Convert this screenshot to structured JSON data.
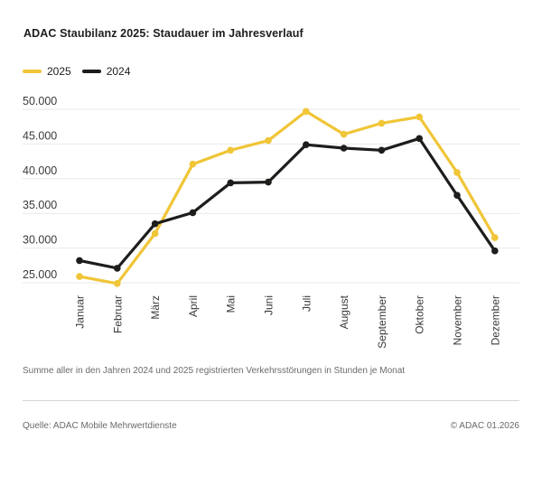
{
  "page": {
    "title": "ADAC Staubilanz 2025: Staudauer im Jahresverlauf",
    "footnote": "Summe aller in den Jahren 2024 und 2025 registrierten Verkehrsstörungen in Stunden je Monat",
    "source": "Quelle: ADAC Mobile Mehrwertdienste",
    "copyright": "© ADAC 01.2026"
  },
  "legend": [
    {
      "label": "2025",
      "color": "#F0C537"
    },
    {
      "label": "2024",
      "color": "#1D1D1B"
    }
  ],
  "colors": {
    "background": "#FFFFFF",
    "grid": "#E9E9E9",
    "divider": "#D5D5D5",
    "title_text": "#1D1D1B",
    "axis_text": "#3A3A3A",
    "muted_text": "#6A6A6A",
    "accent_yellow": "#F0C537",
    "line_black": "#1D1D1B"
  },
  "chart_data": {
    "type": "line",
    "title": "ADAC Staubilanz 2025: Staudauer im Jahresverlauf",
    "xlabel": "",
    "ylabel": "",
    "categories": [
      "Januar",
      "Februar",
      "März",
      "April",
      "Mai",
      "Juni",
      "Juli",
      "August",
      "September",
      "Oktober",
      "November",
      "Dezember"
    ],
    "series": [
      {
        "name": "2025",
        "color": "#F0C537",
        "values": [
          25900,
          24900,
          32100,
          42100,
          44100,
          45500,
          49700,
          46400,
          48000,
          48900,
          40900,
          31500
        ]
      },
      {
        "name": "2024",
        "color": "#1D1D1B",
        "values": [
          28200,
          27100,
          33500,
          35100,
          39400,
          39500,
          44900,
          44400,
          44100,
          45800,
          37600,
          29600
        ]
      }
    ],
    "y_ticks": [
      25000,
      30000,
      35000,
      40000,
      45000,
      50000
    ],
    "y_tick_labels": [
      "25.000",
      "30.000",
      "35.000",
      "40.000",
      "45.000",
      "50.000"
    ],
    "ylim": [
      23400,
      51000
    ],
    "grid": "horizontal",
    "legend_position": "top-left",
    "x_tick_rotation": 90
  }
}
